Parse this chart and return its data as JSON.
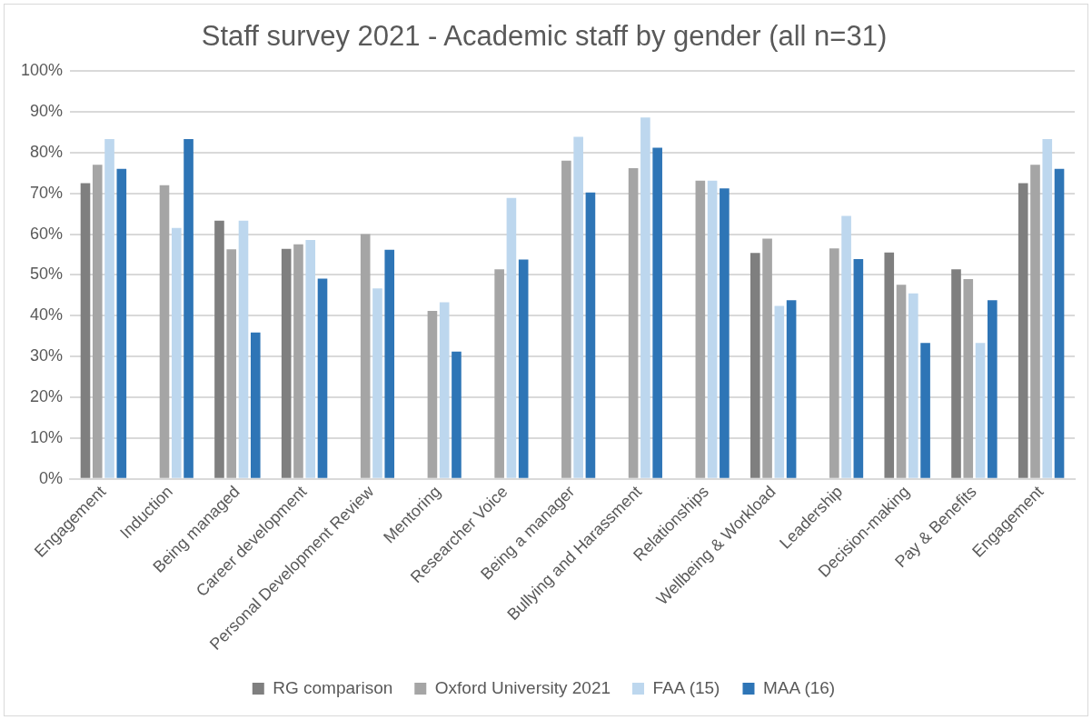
{
  "chart_data": {
    "type": "bar",
    "title": "Staff survey 2021 - Academic staff by gender (all n=31)",
    "categories": [
      "Engagement",
      "Induction",
      "Being managed",
      "Career development",
      "Personal Development Review",
      "Mentoring",
      "Researcher Voice",
      "Being a manager",
      "Bullying and Harassment",
      "Relationships",
      "Wellbeing & Workload",
      "Leadership",
      "Decision-making",
      "Pay & Benefits",
      "Engagement"
    ],
    "series": [
      {
        "name": "RG comparison",
        "color": "#7f7f7f",
        "values": [
          72.5,
          null,
          63.3,
          56.4,
          null,
          null,
          null,
          null,
          null,
          null,
          55.4,
          null,
          55.5,
          51.4,
          72.5
        ]
      },
      {
        "name": "Oxford University 2021",
        "color": "#a5a5a5",
        "values": [
          77,
          72,
          56.3,
          57.5,
          60,
          41.2,
          51.4,
          78,
          76.2,
          73.1,
          58.9,
          56.5,
          47.6,
          49,
          77
        ]
      },
      {
        "name": "FAA (15)",
        "color": "#bdd7ee",
        "values": [
          83.3,
          61.5,
          63.3,
          58.6,
          46.7,
          43.3,
          68.9,
          83.9,
          88.6,
          73.1,
          42.4,
          64.5,
          45.5,
          33.3,
          83.3
        ]
      },
      {
        "name": "MAA (16)",
        "color": "#2e75b6",
        "values": [
          76,
          83.3,
          35.9,
          49.1,
          56.2,
          31.2,
          53.8,
          70.2,
          81.2,
          71.2,
          43.8,
          53.9,
          33.3,
          43.8,
          76
        ]
      }
    ],
    "ylim": [
      0,
      100
    ],
    "yticks": [
      {
        "value": 0,
        "label": "0%"
      },
      {
        "value": 10,
        "label": "10%"
      },
      {
        "value": 20,
        "label": "20%"
      },
      {
        "value": 30,
        "label": "30%"
      },
      {
        "value": 40,
        "label": "40%"
      },
      {
        "value": 50,
        "label": "50%"
      },
      {
        "value": 60,
        "label": "60%"
      },
      {
        "value": 70,
        "label": "70%"
      },
      {
        "value": 80,
        "label": "80%"
      },
      {
        "value": 90,
        "label": "90%"
      },
      {
        "value": 100,
        "label": "100%"
      }
    ],
    "grid": "y",
    "legend": "bottom"
  }
}
